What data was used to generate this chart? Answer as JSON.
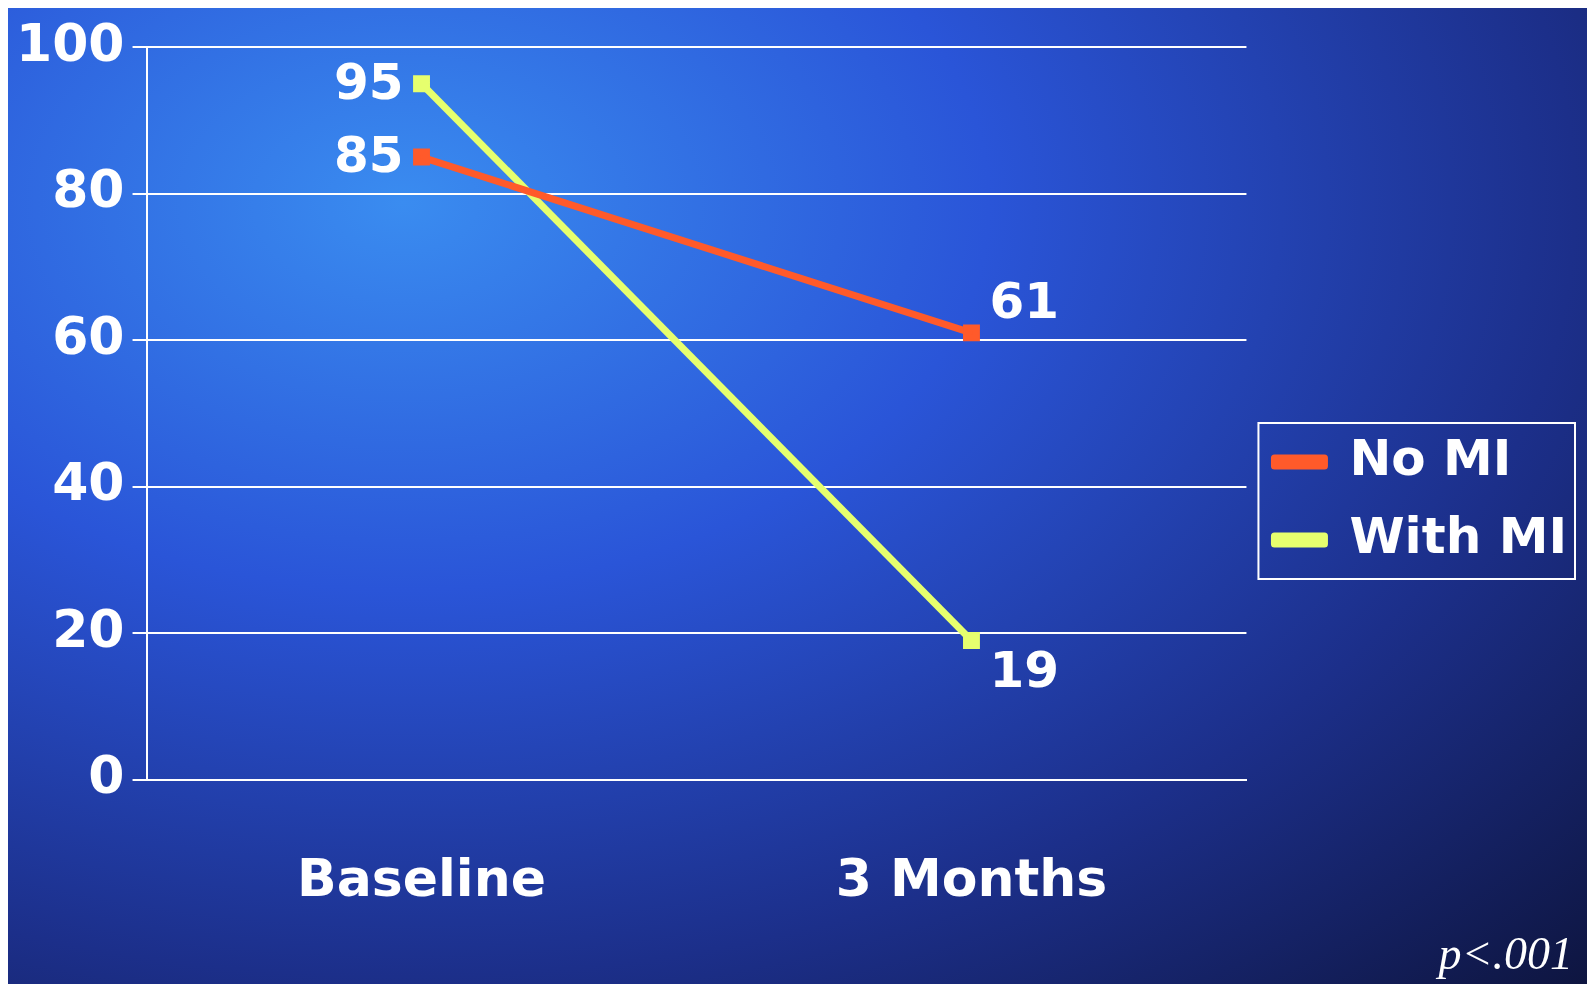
{
  "chart_data": {
    "type": "line",
    "categories": [
      "Baseline",
      "3 Months"
    ],
    "series": [
      {
        "name": "No MI",
        "color": "#ff5a2a",
        "values": [
          85,
          61
        ]
      },
      {
        "name": "With MI",
        "color": "#e6ff6e",
        "values": [
          95,
          19
        ]
      }
    ],
    "ylim": [
      0,
      100
    ],
    "yticks": [
      0,
      20,
      40,
      60,
      80,
      100
    ],
    "grid": "y",
    "legend": "right",
    "marker": "square",
    "data_labels": true,
    "annotations": [
      "p<.001"
    ]
  }
}
